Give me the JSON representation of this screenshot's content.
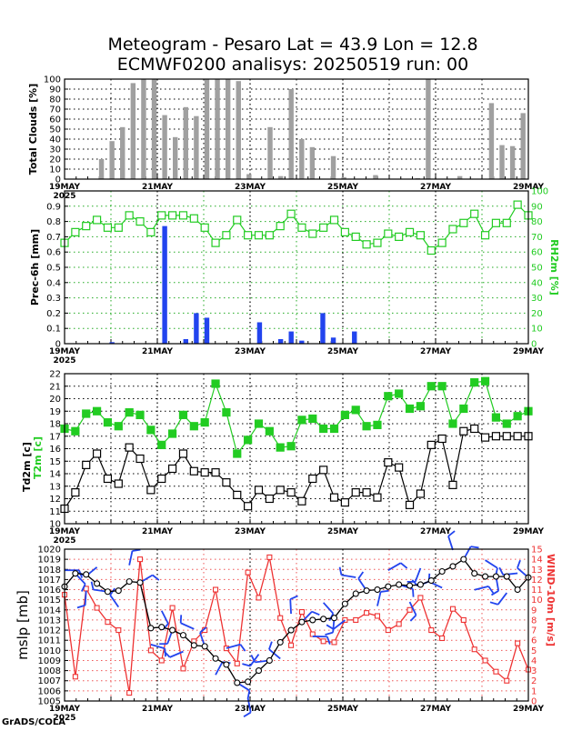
{
  "title": {
    "line1": "Meteogram - Pesaro Lat = 43.9 Lon = 12.8",
    "line2": "ECMWF0200 analisys: 20250519 run: 00"
  },
  "footer": "GrADS/COLA",
  "x_axis": {
    "labels": [
      "19MAY",
      "21MAY",
      "23MAY",
      "25MAY",
      "27MAY",
      "29MAY"
    ],
    "year": "2025"
  },
  "colors": {
    "bars_gray": "#a0a0a0",
    "precip_blue": "#2244ee",
    "rh_green": "#22cc22",
    "t2m_green": "#22cc22",
    "td_black": "#000000",
    "mslp_black": "#000000",
    "wind_red": "#ee3333",
    "barb_blue": "#2244ee"
  },
  "chart_data": [
    {
      "type": "bar",
      "ylabel": "Total Clouds [%]",
      "ylim": [
        0,
        100
      ],
      "yticks": [
        "0",
        "10",
        "20",
        "30",
        "40",
        "50",
        "60",
        "70",
        "80",
        "90",
        "100"
      ],
      "x_start": "2025-05-19 00Z",
      "step_hours": 6,
      "values": [
        0,
        0,
        0,
        20,
        38,
        52,
        96,
        100,
        100,
        64,
        42,
        72,
        63,
        100,
        100,
        100,
        98,
        5,
        0,
        52,
        3,
        90,
        40,
        32,
        0,
        23,
        2,
        0,
        0,
        4,
        0,
        0,
        0,
        1,
        100,
        0,
        0,
        3,
        0,
        0,
        76,
        34,
        33,
        66
      ]
    },
    {
      "type": "bar+line",
      "ylabel": "Prec-6h [mm]",
      "y2label": "RH2m [%]",
      "ylim": [
        0,
        1.0
      ],
      "y2lim": [
        0,
        100
      ],
      "yticks": [
        "0",
        "0.1",
        "0.2",
        "0.3",
        "0.4",
        "0.5",
        "0.6",
        "0.7",
        "0.8",
        "0.9"
      ],
      "y2ticks": [
        "0",
        "10",
        "20",
        "30",
        "40",
        "50",
        "60",
        "70",
        "80",
        "90",
        "100"
      ],
      "x_start": "2025-05-19 00Z",
      "step_hours": 6,
      "series": [
        {
          "name": "Prec-6h",
          "values": [
            0,
            0,
            0,
            0,
            0.01,
            0,
            0,
            0,
            0,
            0.77,
            0,
            0.03,
            0.2,
            0.17,
            0,
            0,
            0,
            0,
            0.14,
            0,
            0.03,
            0.08,
            0.02,
            0,
            0.2,
            0.04,
            0,
            0.08,
            0,
            0,
            0,
            0,
            0,
            0,
            0,
            0,
            0,
            0,
            0,
            0,
            0,
            0,
            0,
            0
          ]
        },
        {
          "name": "RH2m",
          "values": [
            66,
            73,
            77,
            81,
            76,
            76,
            84,
            80,
            73,
            84,
            84,
            84,
            82,
            76,
            66,
            71,
            81,
            71,
            71,
            71,
            77,
            85,
            76,
            72,
            76,
            81,
            73,
            70,
            65,
            66,
            72,
            70,
            73,
            71,
            61,
            66,
            75,
            79,
            85,
            71,
            79,
            79,
            91,
            84
          ]
        }
      ]
    },
    {
      "type": "line",
      "ylabel": "Td2m [c]",
      "ylabel2": "T2m [c]",
      "ylim": [
        10,
        22
      ],
      "yticks": [
        "10",
        "11",
        "12",
        "13",
        "14",
        "15",
        "16",
        "17",
        "18",
        "19",
        "20",
        "21",
        "22"
      ],
      "x_start": "2025-05-19 00Z",
      "step_hours": 6,
      "series": [
        {
          "name": "T2m",
          "values": [
            17.6,
            17.4,
            18.8,
            19.0,
            18.1,
            17.8,
            18.9,
            18.7,
            17.5,
            16.3,
            17.2,
            18.7,
            17.8,
            18.1,
            21.2,
            18.9,
            15.6,
            16.7,
            18.0,
            17.4,
            16.1,
            16.2,
            18.3,
            18.4,
            17.6,
            17.6,
            18.7,
            19.1,
            17.8,
            17.9,
            20.2,
            20.4,
            19.2,
            19.4,
            21.0,
            21.0,
            18.0,
            19.2,
            21.3,
            21.4,
            18.5,
            18.0,
            18.6,
            19.0
          ]
        },
        {
          "name": "Td2m",
          "values": [
            11.2,
            12.5,
            14.7,
            15.6,
            13.6,
            13.2,
            16.1,
            15.2,
            12.7,
            13.6,
            14.4,
            15.6,
            14.2,
            14.1,
            14.1,
            13.3,
            12.3,
            11.4,
            12.7,
            12.0,
            12.7,
            12.5,
            11.8,
            13.6,
            14.3,
            12.1,
            11.7,
            12.5,
            12.5,
            12.1,
            14.9,
            14.5,
            11.5,
            12.4,
            16.3,
            16.8,
            13.1,
            17.4,
            17.6,
            16.9,
            17.0,
            17.0,
            17.0,
            17.0
          ]
        }
      ]
    },
    {
      "type": "line",
      "ylabel": "mslp [mb]",
      "y2label": "WIND-10m [m/s]",
      "ylim": [
        1005,
        1020
      ],
      "y2lim": [
        0,
        15
      ],
      "yticks": [
        "1005",
        "1006",
        "1007",
        "1008",
        "1009",
        "1010",
        "1011",
        "1012",
        "1013",
        "1014",
        "1015",
        "1016",
        "1017",
        "1018",
        "1019",
        "1020"
      ],
      "y2ticks": [
        "0",
        "1",
        "2",
        "3",
        "4",
        "5",
        "6",
        "7",
        "8",
        "9",
        "10",
        "11",
        "12",
        "13",
        "14",
        "15"
      ],
      "x_start": "2025-05-19 00Z",
      "step_hours": 6,
      "series": [
        {
          "name": "mslp",
          "values": [
            1016.3,
            1017.6,
            1017.5,
            1016.6,
            1015.8,
            1015.9,
            1016.8,
            1016.7,
            1012.2,
            1012.3,
            1012.0,
            1011.5,
            1010.5,
            1010.4,
            1009.2,
            1008.6,
            1006.8,
            1006.9,
            1008.0,
            1009.0,
            1010.8,
            1012.0,
            1012.8,
            1013.0,
            1013.1,
            1013.2,
            1014.6,
            1015.6,
            1015.9,
            1016.0,
            1016.3,
            1016.5,
            1016.4,
            1016.5,
            1016.9,
            1017.8,
            1018.3,
            1019.0,
            1017.6,
            1017.3,
            1017.3,
            1017.3,
            1016.0,
            1017.2
          ]
        },
        {
          "name": "WIND-10m",
          "values": [
            10.5,
            2.4,
            11.1,
            9.2,
            7.8,
            7.0,
            0.8,
            14.0,
            5.0,
            4.0,
            9.2,
            3.2,
            5.9,
            7.0,
            11.0,
            5.2,
            3.7,
            12.7,
            10.2,
            14.2,
            8.2,
            5.5,
            8.8,
            6.6,
            5.9,
            5.8,
            8.0,
            8.0,
            8.7,
            8.4,
            7.0,
            7.6,
            9.0,
            10.2,
            7.0,
            6.2,
            9.1,
            8.0,
            5.1,
            4.0,
            2.9,
            2.0,
            5.7,
            3.1
          ]
        }
      ]
    }
  ]
}
